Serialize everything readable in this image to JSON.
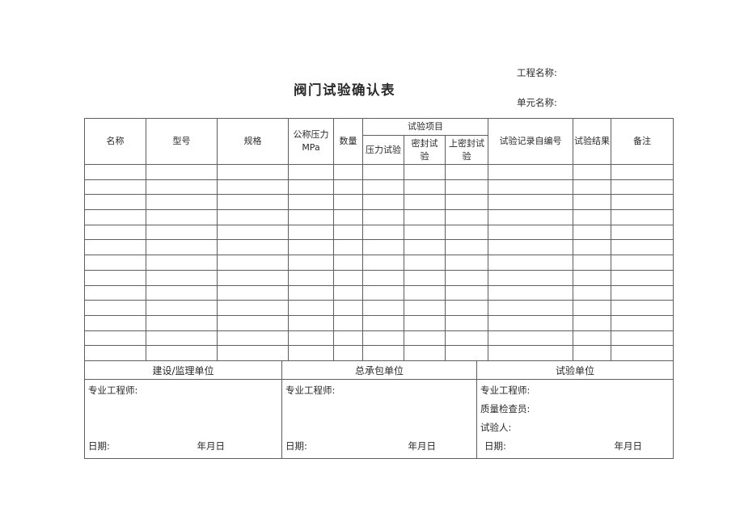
{
  "header": {
    "project_label": "工程名称:",
    "unit_label": "单元名称:",
    "title": "阀门试验确认表"
  },
  "table": {
    "col_headers": {
      "name": "名称",
      "model": "型号",
      "spec": "规格",
      "nominal_pressure_line1": "公称压力",
      "nominal_pressure_line2": "MPa",
      "quantity": "数量",
      "test_items_group": "试验项目",
      "pressure_test": "压力试验",
      "seal_test": "密封试验",
      "upper_seal_test": "上密封试验",
      "test_record_number": "试验记录自编号",
      "test_result": "试验结果",
      "remarks": "备注"
    },
    "empty_row_count": 13,
    "column_count": 11
  },
  "signatures": {
    "sections": [
      {
        "title": "建设/监理单位",
        "roles": [
          "专业工程师:"
        ],
        "date_label": "日期:",
        "date_placeholder": "年月日"
      },
      {
        "title": "总承包单位",
        "roles": [
          "专业工程师:"
        ],
        "date_label": "日期:",
        "date_placeholder": "年月日"
      },
      {
        "title": "试验单位",
        "roles": [
          "专业工程师:",
          "质量检查员:",
          "试验人:"
        ],
        "date_label": "日期:",
        "date_placeholder": "年月日"
      }
    ]
  },
  "colors": {
    "border": "#5e5e5e",
    "text": "#2a2a2a",
    "background": "#ffffff"
  }
}
